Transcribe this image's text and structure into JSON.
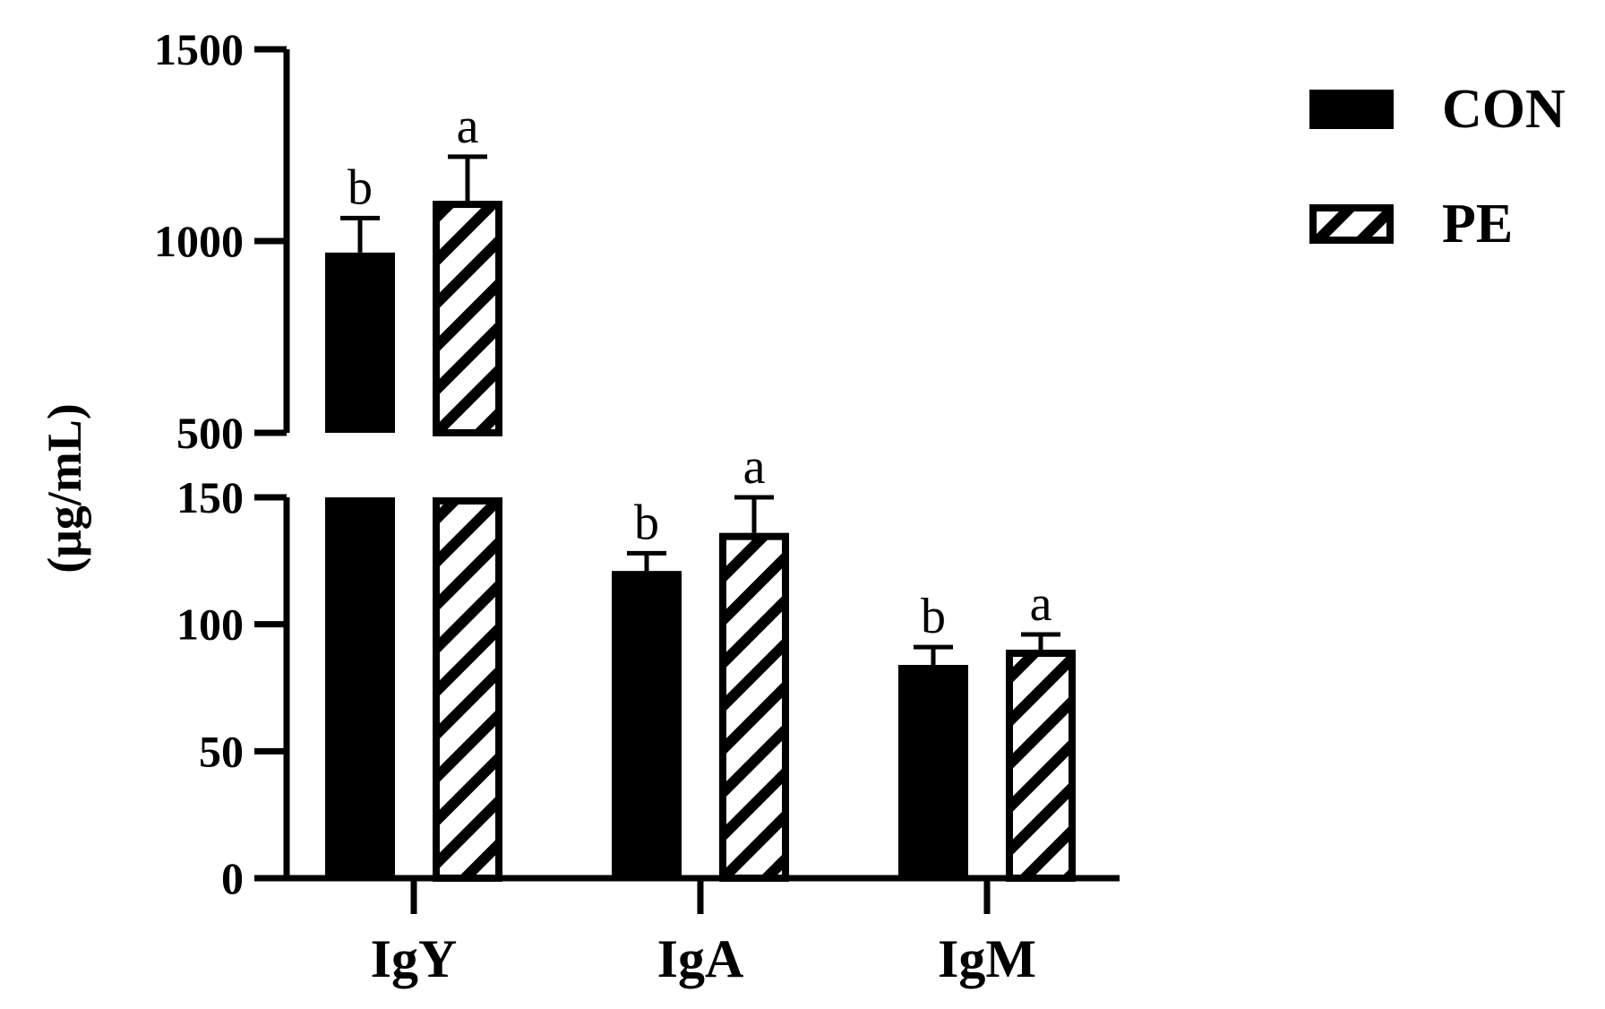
{
  "chart_data": {
    "type": "bar",
    "ylabel": "(μg/mL)",
    "xlabel": "",
    "categories": [
      "IgY",
      "IgA",
      "IgM"
    ],
    "series": [
      {
        "name": "CON",
        "pattern": "solid",
        "color": "#000000",
        "values": [
          970,
          121,
          84
        ],
        "errors": [
          90,
          7,
          7
        ],
        "labels": [
          "b",
          "b",
          "b"
        ]
      },
      {
        "name": "PE",
        "pattern": "diagonal-hatch",
        "color": "#000000",
        "values": [
          1105,
          136,
          90
        ],
        "errors": [
          115,
          14,
          6
        ],
        "labels": [
          "a",
          "a",
          "a"
        ]
      }
    ],
    "axis_break": {
      "lower_segment": [
        0,
        150
      ],
      "upper_segment": [
        500,
        1500
      ]
    },
    "y_ticks_lower": [
      "0",
      "50",
      "100",
      "150"
    ],
    "y_ticks_upper": [
      "500",
      "1000",
      "1500"
    ],
    "legend_position": "top-right",
    "grid": false
  }
}
